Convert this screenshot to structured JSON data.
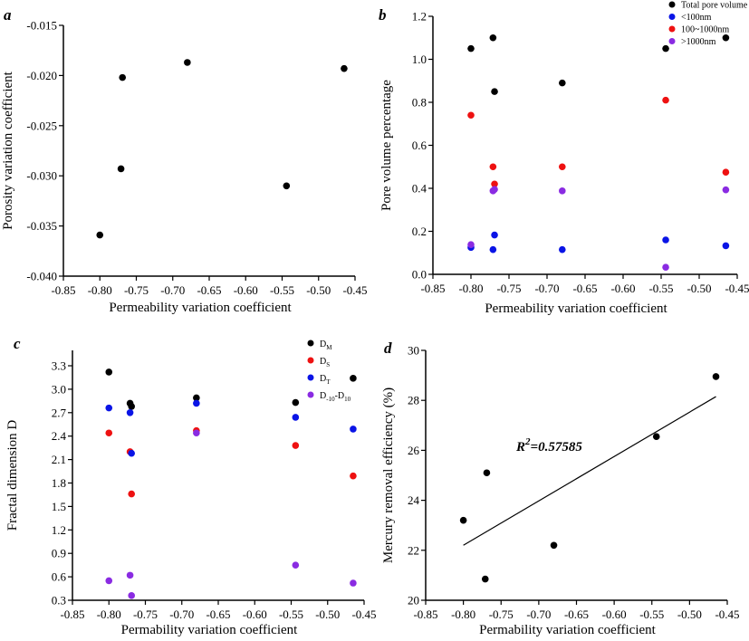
{
  "chart_data": [
    {
      "panel": "a",
      "type": "scatter",
      "xlabel": "Permeability variation coefficient",
      "ylabel": "Porosity variation coefficient",
      "xlim": [
        -0.85,
        -0.45
      ],
      "ylim": [
        -0.04,
        -0.015
      ],
      "xticks": [
        "-0.85",
        "-0.80",
        "-0.75",
        "-0.70",
        "-0.65",
        "-0.60",
        "-0.55",
        "-0.50",
        "-0.45"
      ],
      "yticks": [
        "-0.040",
        "-0.035",
        "-0.030",
        "-0.025",
        "-0.020",
        "-0.015"
      ],
      "series": [
        {
          "color": "#000000",
          "points": [
            [
              -0.8,
              -0.0359
            ],
            [
              -0.769,
              -0.0202
            ],
            [
              -0.771,
              -0.0293
            ],
            [
              -0.68,
              -0.0187
            ],
            [
              -0.544,
              -0.031
            ],
            [
              -0.465,
              -0.0193
            ]
          ]
        }
      ]
    },
    {
      "panel": "b",
      "type": "scatter",
      "xlabel": "Permeability variation coefficient",
      "ylabel": "Pore volume percentage",
      "xlim": [
        -0.85,
        -0.45
      ],
      "ylim": [
        0.0,
        1.2
      ],
      "xticks": [
        "-0.85",
        "-0.80",
        "-0.75",
        "-0.70",
        "-0.65",
        "-0.60",
        "-0.55",
        "-0.50",
        "-0.45"
      ],
      "yticks": [
        "0.0",
        "0.2",
        "0.4",
        "0.6",
        "0.8",
        "1.0",
        "1.2"
      ],
      "legend_placement": "top-right",
      "series": [
        {
          "name": "Total pore volume",
          "color": "#000000",
          "points": [
            [
              -0.8,
              1.05
            ],
            [
              -0.771,
              1.1
            ],
            [
              -0.769,
              0.85
            ],
            [
              -0.68,
              0.89
            ],
            [
              -0.544,
              1.05
            ],
            [
              -0.465,
              1.1
            ]
          ]
        },
        {
          "name": "<100nm",
          "color": "#0a14e6",
          "points": [
            [
              -0.8,
              0.125
            ],
            [
              -0.771,
              0.115
            ],
            [
              -0.769,
              0.183
            ],
            [
              -0.68,
              0.115
            ],
            [
              -0.544,
              0.16
            ],
            [
              -0.465,
              0.133
            ]
          ]
        },
        {
          "name": "100~1000nm",
          "color": "#ee1111",
          "points": [
            [
              -0.8,
              0.74
            ],
            [
              -0.771,
              0.5
            ],
            [
              -0.769,
              0.42
            ],
            [
              -0.68,
              0.5
            ],
            [
              -0.544,
              0.81
            ],
            [
              -0.465,
              0.475
            ]
          ]
        },
        {
          "name": ">1000nm",
          "color": "#8a2be2",
          "points": [
            [
              -0.8,
              0.138
            ],
            [
              -0.771,
              0.388
            ],
            [
              -0.769,
              0.395
            ],
            [
              -0.68,
              0.388
            ],
            [
              -0.544,
              0.033
            ],
            [
              -0.465,
              0.393
            ]
          ]
        }
      ]
    },
    {
      "panel": "c",
      "type": "scatter",
      "xlabel": "Permability variation coefficient",
      "ylabel": "Fractal dimension D",
      "xlim": [
        -0.85,
        -0.45
      ],
      "ylim": [
        0.3,
        3.5
      ],
      "xticks": [
        "-0.85",
        "-0.80",
        "-0.75",
        "-0.70",
        "-0.65",
        "-0.60",
        "-0.55",
        "-0.50",
        "-0.45"
      ],
      "yticks": [
        "0.3",
        "0.6",
        "0.9",
        "1.2",
        "1.5",
        "1.8",
        "2.1",
        "2.4",
        "2.7",
        "3.0",
        "3.3"
      ],
      "legend_placement": "top-right",
      "series": [
        {
          "name": "D",
          "sub": "M",
          "color": "#000000",
          "points": [
            [
              -0.8,
              3.22
            ],
            [
              -0.771,
              2.82
            ],
            [
              -0.769,
              2.78
            ],
            [
              -0.68,
              2.89
            ],
            [
              -0.544,
              2.83
            ],
            [
              -0.465,
              3.14
            ]
          ]
        },
        {
          "name": "D",
          "sub": "S",
          "color": "#ee1111",
          "points": [
            [
              -0.8,
              2.44
            ],
            [
              -0.771,
              2.2
            ],
            [
              -0.769,
              1.66
            ],
            [
              -0.68,
              2.47
            ],
            [
              -0.544,
              2.28
            ],
            [
              -0.465,
              1.89
            ]
          ]
        },
        {
          "name": "D",
          "sub": "T",
          "color": "#0a14e6",
          "points": [
            [
              -0.8,
              2.76
            ],
            [
              -0.771,
              2.7
            ],
            [
              -0.769,
              2.18
            ],
            [
              -0.68,
              2.82
            ],
            [
              -0.544,
              2.64
            ],
            [
              -0.465,
              2.49
            ]
          ]
        },
        {
          "name": "D-10-D10",
          "sub": "",
          "color": "#8a2be2",
          "points": [
            [
              -0.8,
              0.55
            ],
            [
              -0.771,
              0.62
            ],
            [
              -0.769,
              0.36
            ],
            [
              -0.68,
              2.44
            ],
            [
              -0.544,
              0.75
            ],
            [
              -0.465,
              0.52
            ]
          ]
        }
      ]
    },
    {
      "panel": "d",
      "type": "scatter",
      "xlabel": "Permability variation coefficient",
      "ylabel": "Mercury removal efficiency (%)",
      "xlim": [
        -0.85,
        -0.45
      ],
      "ylim": [
        20,
        30
      ],
      "xticks": [
        "-0.85",
        "-0.80",
        "-0.75",
        "-0.70",
        "-0.65",
        "-0.60",
        "-0.55",
        "-0.50",
        "-0.45"
      ],
      "yticks": [
        "20",
        "22",
        "24",
        "26",
        "28",
        "30"
      ],
      "annotation": "=0.57585",
      "annotation_prefix": "R",
      "annotation_sup": "2",
      "fit_line": [
        [
          -0.8,
          22.2
        ],
        [
          -0.465,
          28.15
        ]
      ],
      "series": [
        {
          "color": "#000000",
          "points": [
            [
              -0.8,
              23.2
            ],
            [
              -0.771,
              20.85
            ],
            [
              -0.769,
              25.1
            ],
            [
              -0.68,
              22.2
            ],
            [
              -0.544,
              26.55
            ],
            [
              -0.465,
              28.95
            ]
          ]
        }
      ]
    }
  ]
}
